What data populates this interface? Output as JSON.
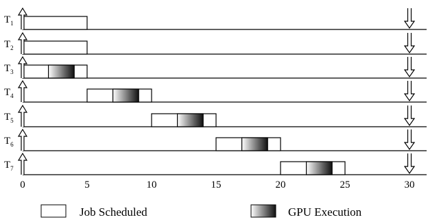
{
  "diagram": {
    "time_axis": {
      "min": 0,
      "max": 31,
      "ticks": [
        0,
        5,
        10,
        15,
        20,
        25,
        30
      ]
    },
    "tasks": [
      {
        "name": "T",
        "sub": "1",
        "release": 0,
        "deadline": 30,
        "jobs": [
          {
            "start": 0,
            "end": 5,
            "gpu": null
          }
        ]
      },
      {
        "name": "T",
        "sub": "2",
        "release": 0,
        "deadline": 30,
        "jobs": [
          {
            "start": 0,
            "end": 5,
            "gpu": null
          }
        ]
      },
      {
        "name": "T",
        "sub": "3",
        "release": 0,
        "deadline": 30,
        "jobs": [
          {
            "start": 0,
            "end": 5,
            "gpu": [
              2,
              4
            ]
          }
        ]
      },
      {
        "name": "T",
        "sub": "4",
        "release": 0,
        "deadline": 30,
        "jobs": [
          {
            "start": 5,
            "end": 10,
            "gpu": [
              7,
              9
            ]
          }
        ]
      },
      {
        "name": "T",
        "sub": "5",
        "release": 0,
        "deadline": 30,
        "jobs": [
          {
            "start": 10,
            "end": 15,
            "gpu": [
              12,
              14
            ]
          }
        ]
      },
      {
        "name": "T",
        "sub": "6",
        "release": 0,
        "deadline": 30,
        "jobs": [
          {
            "start": 15,
            "end": 20,
            "gpu": [
              17,
              19
            ]
          }
        ]
      },
      {
        "name": "T",
        "sub": "7",
        "release": 0,
        "deadline": 30,
        "jobs": [
          {
            "start": 20,
            "end": 25,
            "gpu": [
              22,
              24
            ]
          }
        ]
      }
    ],
    "legend": [
      {
        "key": "job",
        "label": "Job Scheduled"
      },
      {
        "key": "gpu",
        "label": "GPU Execution"
      }
    ]
  }
}
